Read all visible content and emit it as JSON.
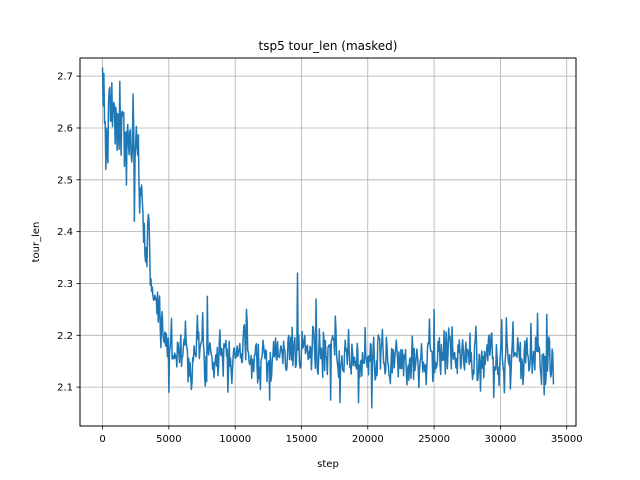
{
  "chart_data": {
    "type": "line",
    "title": "tsp5 tour_len (masked)",
    "xlabel": "step",
    "ylabel": "tour_len",
    "xlim": [
      -1700,
      35700
    ],
    "ylim": [
      2.025,
      2.735
    ],
    "xticks": [
      0,
      5000,
      10000,
      15000,
      20000,
      25000,
      30000,
      35000
    ],
    "xtick_labels": [
      "0",
      "5000",
      "10000",
      "15000",
      "20000",
      "25000",
      "30000",
      "35000"
    ],
    "yticks": [
      2.1,
      2.2,
      2.3,
      2.4,
      2.5,
      2.6,
      2.7
    ],
    "ytick_labels": [
      "2.1",
      "2.2",
      "2.3",
      "2.4",
      "2.5",
      "2.6",
      "2.7"
    ],
    "grid": true,
    "series_color": "#1f77b4",
    "series": [
      {
        "x_start": 0,
        "x_step": 50,
        "noise_seed": 7,
        "anchors": [
          [
            0,
            2.6
          ],
          [
            200,
            2.62
          ],
          [
            1000,
            2.6
          ],
          [
            2000,
            2.58
          ],
          [
            2500,
            2.55
          ],
          [
            3000,
            2.45
          ],
          [
            3500,
            2.35
          ],
          [
            4000,
            2.27
          ],
          [
            4500,
            2.21
          ],
          [
            5000,
            2.18
          ],
          [
            7000,
            2.17
          ],
          [
            10000,
            2.175
          ],
          [
            13000,
            2.16
          ],
          [
            15000,
            2.17
          ],
          [
            17000,
            2.16
          ],
          [
            18000,
            2.15
          ],
          [
            20000,
            2.155
          ],
          [
            22000,
            2.155
          ],
          [
            24000,
            2.16
          ],
          [
            27000,
            2.16
          ],
          [
            30000,
            2.155
          ],
          [
            34000,
            2.16
          ]
        ],
        "noise_amp": [
          [
            0,
            0.045
          ],
          [
            3000,
            0.035
          ],
          [
            4500,
            0.03
          ],
          [
            10000,
            0.028
          ],
          [
            20000,
            0.026
          ],
          [
            34000,
            0.03
          ]
        ],
        "extremes": [
          [
            100,
            2.705
          ],
          [
            250,
            2.52
          ],
          [
            1300,
            2.69
          ],
          [
            1800,
            2.49
          ],
          [
            2400,
            2.42
          ],
          [
            5000,
            2.09
          ],
          [
            7900,
            2.275
          ],
          [
            12600,
            2.075
          ],
          [
            14700,
            2.32
          ],
          [
            14800,
            2.2
          ],
          [
            16100,
            2.27
          ],
          [
            17200,
            2.075
          ],
          [
            17900,
            2.07
          ],
          [
            19300,
            2.07
          ],
          [
            20300,
            2.06
          ],
          [
            25000,
            2.25
          ],
          [
            29500,
            2.08
          ],
          [
            30100,
            2.23
          ],
          [
            33300,
            2.085
          ],
          [
            33500,
            2.24
          ],
          [
            34000,
            2.105
          ],
          [
            34100,
            2.22
          ]
        ]
      }
    ]
  }
}
